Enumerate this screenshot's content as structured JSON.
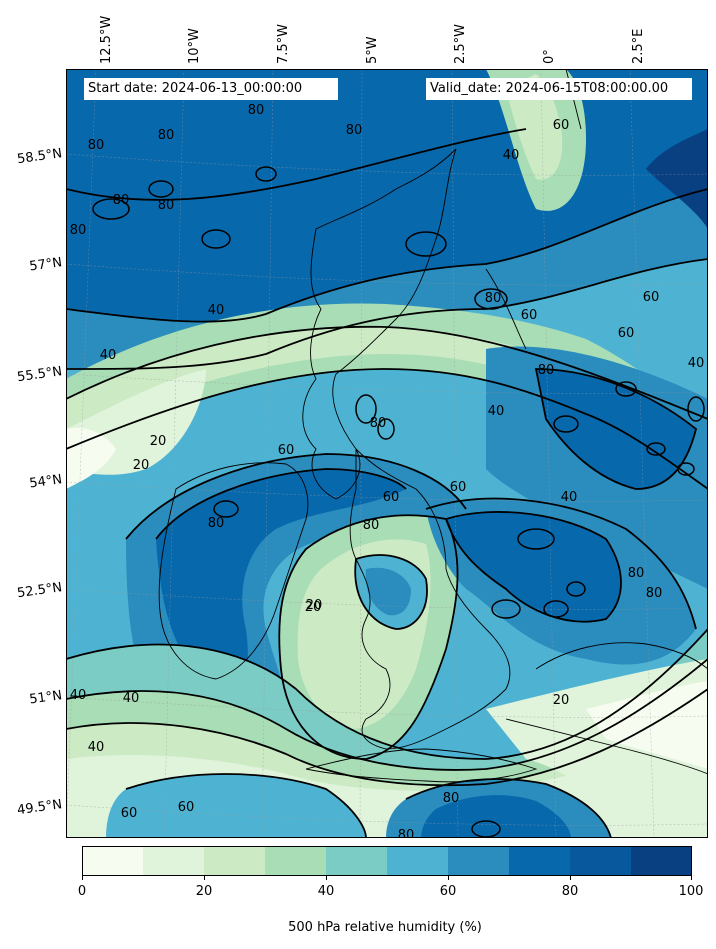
{
  "header": {
    "start_date": "Start date: 2024-06-13_00:00:00",
    "valid_date": "Valid_date: 2024-06-15T08:00:00.00"
  },
  "longitude_labels": [
    "12.5°W",
    "10°W",
    "7.5°W",
    "5°W",
    "2.5°W",
    "0°",
    "2.5°E"
  ],
  "latitude_labels": [
    "58.5°N",
    "57°N",
    "55.5°N",
    "54°N",
    "52.5°N",
    "51°N",
    "49.5°N"
  ],
  "contour_labels": [
    "80",
    "80",
    "80",
    "80",
    "80",
    "80",
    "80",
    "60",
    "40",
    "60",
    "40",
    "40",
    "20",
    "20",
    "20",
    "40",
    "40",
    "40",
    "60",
    "80",
    "80",
    "60",
    "80",
    "60",
    "60",
    "40",
    "80",
    "60",
    "40",
    "20",
    "60",
    "60",
    "80",
    "80",
    "80",
    "80",
    "20",
    "80",
    "40"
  ],
  "colorbar": {
    "label": "500 hPa relative humidity (%)",
    "ticks": [
      "0",
      "20",
      "40",
      "60",
      "80",
      "100"
    ],
    "colors": [
      "#f7fcf0",
      "#e0f3db",
      "#ccebc5",
      "#a8ddb5",
      "#7bccc4",
      "#4eb3d3",
      "#2b8cbe",
      "#0868ac",
      "#08589e",
      "#084081"
    ]
  }
}
